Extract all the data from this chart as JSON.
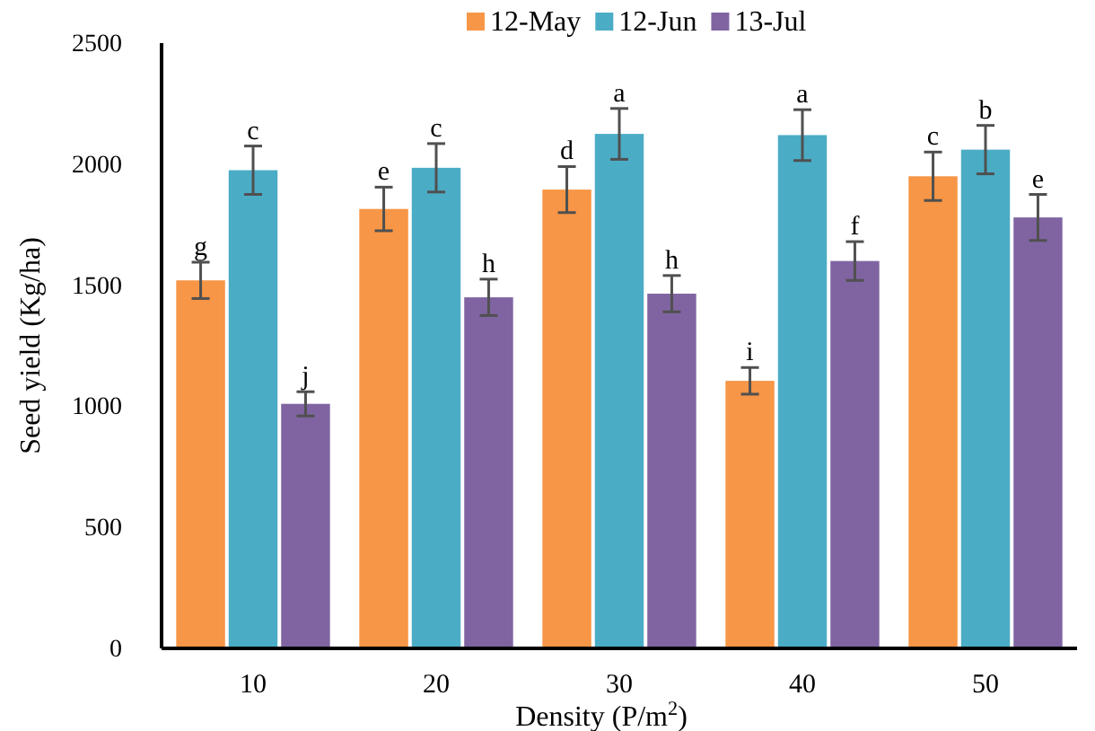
{
  "chart_data": {
    "type": "bar",
    "xlabel": "Density (P/m$^{2}$)",
    "ylabel": "Seed yield (Kg/ha)",
    "categories": [
      "10",
      "20",
      "30",
      "40",
      "50"
    ],
    "series": [
      {
        "name": "12-May",
        "color": "#f79646",
        "values": [
          1520,
          1815,
          1895,
          1105,
          1950
        ],
        "errors": [
          75,
          90,
          95,
          55,
          100
        ],
        "value_labels": [
          "g",
          "e",
          "d",
          "i",
          "c"
        ]
      },
      {
        "name": "12-Jun",
        "color": "#4bacc6",
        "values": [
          1975,
          1985,
          2125,
          2120,
          2060
        ],
        "errors": [
          100,
          100,
          105,
          105,
          100
        ],
        "value_labels": [
          "c",
          "c",
          "a",
          "a",
          "b"
        ]
      },
      {
        "name": "13-Jul",
        "color": "#8064a2",
        "values": [
          1010,
          1450,
          1465,
          1600,
          1780
        ],
        "errors": [
          50,
          75,
          75,
          80,
          95
        ],
        "value_labels": [
          "j",
          "h",
          "h",
          "f",
          "e"
        ]
      }
    ],
    "ylim": [
      0,
      2500
    ],
    "yticks": [
      0,
      500,
      1000,
      1500,
      2000,
      2500
    ],
    "legend": "top",
    "grid": false
  }
}
